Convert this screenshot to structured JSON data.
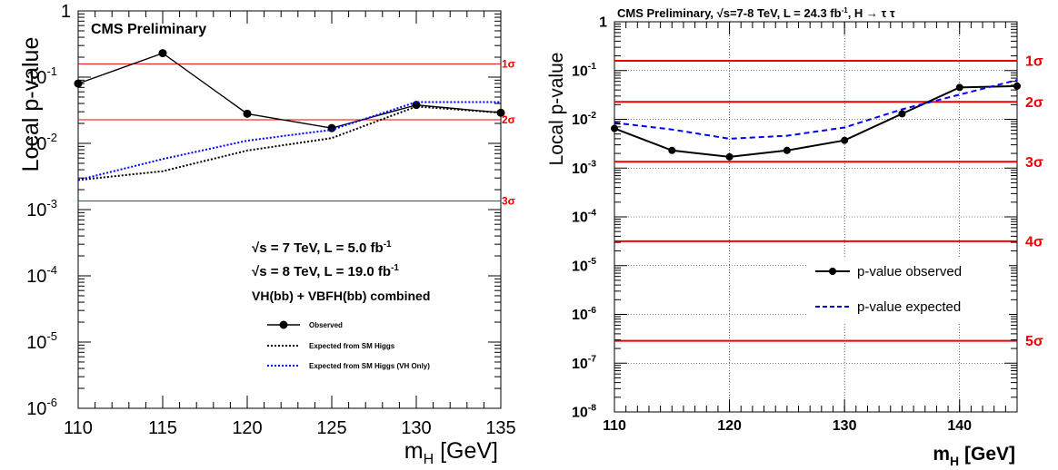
{
  "chart_data": [
    {
      "type": "line",
      "title": "",
      "header_text": "CMS Preliminary",
      "xlabel": "m",
      "xlabel_sub": "H",
      "xlabel_unit": " [GeV]",
      "ylabel": "Local p-value",
      "y_scale": "log",
      "xlim": [
        110,
        135
      ],
      "ylim": [
        1e-06,
        1
      ],
      "x_ticks": [
        "110",
        "115",
        "120",
        "125",
        "130",
        "135"
      ],
      "y_ticks": [
        {
          "base": "1",
          "exp": ""
        },
        {
          "base": "10",
          "exp": "-1"
        },
        {
          "base": "10",
          "exp": "-2"
        },
        {
          "base": "10",
          "exp": "-3"
        },
        {
          "base": "10",
          "exp": "-4"
        },
        {
          "base": "10",
          "exp": "-5"
        },
        {
          "base": "10",
          "exp": "-6"
        }
      ],
      "grid": false,
      "sigma_lines": [
        {
          "label": "1σ",
          "value": 0.1587
        },
        {
          "label": "2σ",
          "value": 0.02275
        },
        {
          "label": "3σ",
          "value": 0.00135
        }
      ],
      "annotations": [
        {
          "prefix": "√",
          "text": "s = 7 TeV, L = 5.0 fb",
          "sup": "-1"
        },
        {
          "prefix": "√",
          "text": "s = 8 TeV, L = 19.0 fb",
          "sup": "-1"
        },
        {
          "prefix": "",
          "text": "VH(bb) + VBFH(bb) combined",
          "sup": ""
        }
      ],
      "legend_position": "lower-center",
      "series": [
        {
          "name": "Observed",
          "style": "solid-markers",
          "color": "#000000",
          "x": [
            110,
            115,
            120,
            125,
            130,
            135
          ],
          "y": [
            0.08,
            0.23,
            0.028,
            0.017,
            0.038,
            0.029
          ]
        },
        {
          "name": "Expected from SM Higgs",
          "style": "dotted",
          "color": "#000000",
          "x": [
            110,
            115,
            120,
            125,
            130,
            135
          ],
          "y": [
            0.0028,
            0.0038,
            0.0078,
            0.012,
            0.036,
            0.029
          ]
        },
        {
          "name": "Expected from SM Higgs (VH Only)",
          "style": "dotted",
          "color": "#0000ff",
          "x": [
            110,
            115,
            120,
            125,
            130,
            135
          ],
          "y": [
            0.0028,
            0.0058,
            0.011,
            0.016,
            0.042,
            0.042
          ]
        }
      ]
    },
    {
      "type": "line",
      "title": "CMS  Preliminary, √s=7-8 TeV, L = 24.3 fb-1, H → τ τ",
      "title_parts": {
        "a": "CMS  Preliminary, ",
        "root": "√",
        "b": "s=7-8 TeV, L = 24.3 fb",
        "sup": "-1",
        "c": ", H → τ τ"
      },
      "xlabel": "m",
      "xlabel_sub": "H",
      "xlabel_unit": " [GeV]",
      "ylabel": "Local p-value",
      "y_scale": "log",
      "xlim": [
        110,
        145
      ],
      "ylim": [
        1e-08,
        1
      ],
      "x_ticks": [
        "110",
        "120",
        "130",
        "140"
      ],
      "y_ticks": [
        {
          "base": "1",
          "exp": ""
        },
        {
          "base": "10",
          "exp": "-1"
        },
        {
          "base": "10",
          "exp": "-2"
        },
        {
          "base": "10",
          "exp": "-3"
        },
        {
          "base": "10",
          "exp": "-4"
        },
        {
          "base": "10",
          "exp": "-5"
        },
        {
          "base": "10",
          "exp": "-6"
        },
        {
          "base": "10",
          "exp": "-7"
        },
        {
          "base": "10",
          "exp": "-8"
        }
      ],
      "grid": true,
      "sigma_lines": [
        {
          "label": "1σ",
          "value": 0.1587
        },
        {
          "label": "2σ",
          "value": 0.02275
        },
        {
          "label": "3σ",
          "value": 0.00135
        },
        {
          "label": "4σ",
          "value": 3.17e-05
        },
        {
          "label": "5σ",
          "value": 2.87e-07
        }
      ],
      "legend_position": "middle-right",
      "series": [
        {
          "name": "p-value observed",
          "style": "solid-markers",
          "color": "#000000",
          "x": [
            110,
            115,
            120,
            125,
            130,
            135,
            140,
            145
          ],
          "y": [
            0.0065,
            0.0023,
            0.0017,
            0.0023,
            0.0037,
            0.013,
            0.045,
            0.048
          ]
        },
        {
          "name": "p-value expected",
          "style": "dashed",
          "color": "#0000ff",
          "x": [
            110,
            115,
            120,
            125,
            130,
            135,
            140,
            145
          ],
          "y": [
            0.0085,
            0.0062,
            0.004,
            0.0046,
            0.0068,
            0.016,
            0.032,
            0.064
          ]
        }
      ]
    }
  ]
}
